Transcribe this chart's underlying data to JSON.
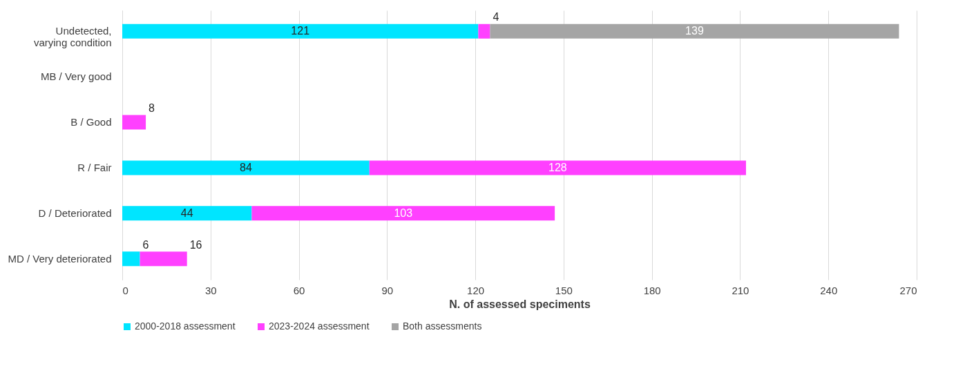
{
  "chart_data": {
    "type": "bar",
    "orientation": "horizontal",
    "stacked": true,
    "categories": [
      "Undetected,\nvarying condition",
      "MB / Very good",
      "B / Good",
      "R / Fair",
      "D / Deteriorated",
      "MD / Very deteriorated"
    ],
    "series": [
      {
        "name": "2000-2018 assessment",
        "color": "#00e5ff",
        "values": [
          121,
          null,
          null,
          84,
          44,
          6
        ]
      },
      {
        "name": "2023-2024 assessment",
        "color": "#ff40ff",
        "values": [
          4,
          null,
          8,
          128,
          103,
          16
        ]
      },
      {
        "name": "Both assessments",
        "color": "#a5a5a5",
        "values": [
          139,
          null,
          null,
          null,
          null,
          null
        ]
      }
    ],
    "xlim": [
      0,
      270
    ],
    "xticks": [
      0,
      30,
      60,
      90,
      120,
      150,
      180,
      210,
      240,
      270
    ],
    "xlabel": "N. of assessed speciments",
    "grid": "x",
    "legend": "bottom",
    "data_labels": true
  }
}
